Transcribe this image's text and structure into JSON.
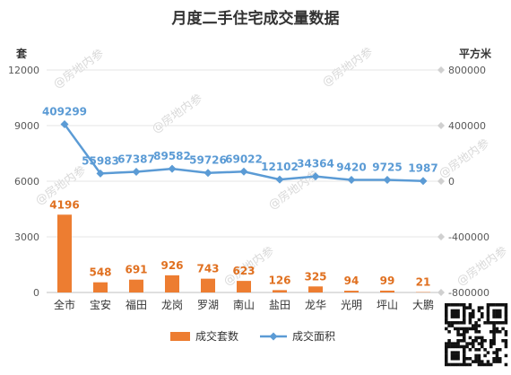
{
  "chart_data": {
    "type": "bar",
    "title": "月度二手住宅成交量数据",
    "categories": [
      "全市",
      "宝安",
      "福田",
      "龙岗",
      "罗湖",
      "南山",
      "盐田",
      "龙华",
      "光明",
      "坪山",
      "大鹏"
    ],
    "y_left": {
      "unit": "套",
      "ylim": [
        0,
        12000
      ],
      "ticks": [
        "0",
        "3000",
        "6000",
        "9000",
        "12000"
      ]
    },
    "y_right": {
      "unit": "平方米",
      "ylim": [
        -800000,
        800000
      ],
      "ticks": [
        "-800000",
        "-400000",
        "0",
        "400000",
        "800000"
      ]
    },
    "series": [
      {
        "name": "成交套数",
        "type": "bar",
        "axis": "left",
        "color": "#ed7d31",
        "values": [
          4196,
          548,
          691,
          926,
          743,
          623,
          126,
          325,
          94,
          99,
          21
        ]
      },
      {
        "name": "成交面积",
        "type": "line",
        "axis": "right",
        "color": "#5b9bd5",
        "values": [
          409299,
          55983,
          67387,
          89582,
          59726,
          69022,
          12102,
          34364,
          9420,
          9725,
          1987
        ]
      }
    ],
    "legend_position": "bottom",
    "grid": true
  },
  "watermark": "@房地内参",
  "qr_icon": "qr-code-icon"
}
